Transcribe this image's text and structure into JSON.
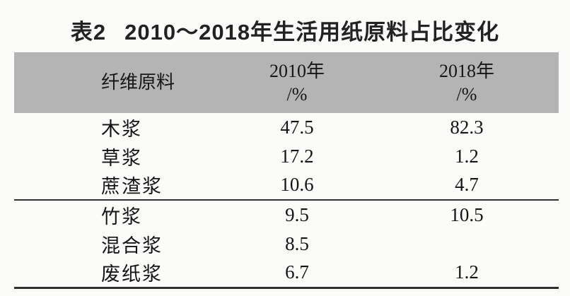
{
  "title": {
    "label": "表2",
    "text": "2010～2018年生活用纸原料占比变化"
  },
  "table": {
    "header": {
      "material": "纤维原料",
      "col2010_year": "2010年",
      "col2010_unit": "/%",
      "col2018_year": "2018年",
      "col2018_unit": "/%"
    },
    "rows": [
      {
        "material": "木浆",
        "y2010": "47.5",
        "y2018": "82.3"
      },
      {
        "material": "草浆",
        "y2010": "17.2",
        "y2018": "1.2"
      },
      {
        "material": "蔗渣浆",
        "y2010": "10.6",
        "y2018": "4.7"
      },
      {
        "material": "竹浆",
        "y2010": "9.5",
        "y2018": "10.5"
      },
      {
        "material": "混合浆",
        "y2010": "8.5",
        "y2018": ""
      },
      {
        "material": "废纸浆",
        "y2010": "6.7",
        "y2018": "1.2"
      }
    ]
  },
  "colors": {
    "header_background": "#b4b4b4",
    "rule_line": "#2e2e2e",
    "page_background": "#fbfbfa"
  },
  "chart_data": {
    "type": "table",
    "title": "表2 2010～2018年生活用纸原料占比变化",
    "categories": [
      "木浆",
      "草浆",
      "蔗渣浆",
      "竹浆",
      "混合浆",
      "废纸浆"
    ],
    "series": [
      {
        "name": "2010年/%",
        "values": [
          47.5,
          17.2,
          10.6,
          9.5,
          8.5,
          6.7
        ]
      },
      {
        "name": "2018年/%",
        "values": [
          82.3,
          1.2,
          4.7,
          10.5,
          null,
          1.2
        ]
      }
    ]
  }
}
